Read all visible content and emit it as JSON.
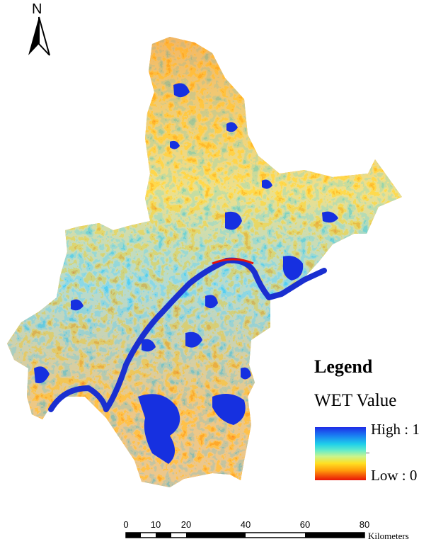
{
  "north_arrow": {
    "label": "N",
    "icon": "north-arrow-icon"
  },
  "legend": {
    "title": "Legend",
    "subtitle": "WET Value",
    "high_label": "High : 1",
    "low_label": "Low : 0",
    "ramp_colors": [
      "#1e2ce6",
      "#1a7ff2",
      "#1fd0ea",
      "#66ecc8",
      "#c8f48e",
      "#ffe022",
      "#ff9a0a",
      "#e81408"
    ]
  },
  "scale_bar": {
    "ticks": [
      "0",
      "10",
      "20",
      "40",
      "60",
      "80"
    ],
    "unit": "Kilometers"
  },
  "colors": {
    "water": "#1630e0",
    "river": "#1a2fd0"
  }
}
